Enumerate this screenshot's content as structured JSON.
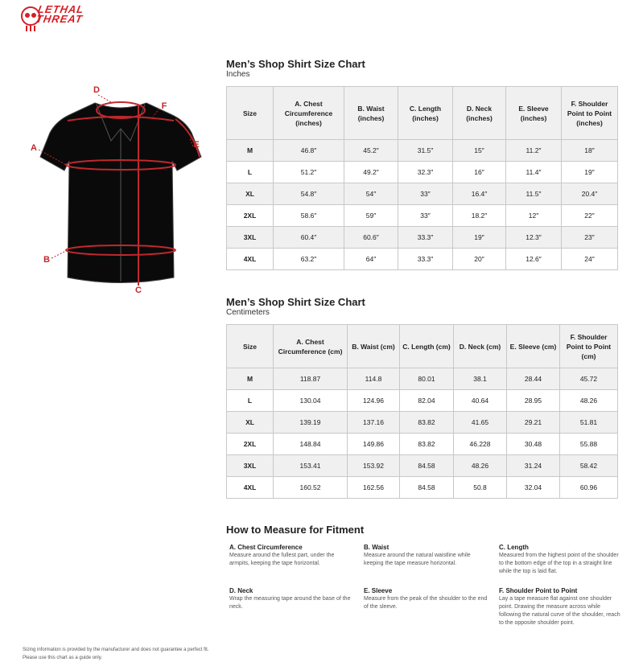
{
  "logo": {
    "line1": "LETHAL",
    "line2": "THREAT"
  },
  "diagram": {
    "labels": [
      "A",
      "B",
      "C",
      "D",
      "E",
      "F"
    ]
  },
  "tables": [
    {
      "title": "Men’s Shop Shirt Size Chart",
      "unit": "Inches",
      "headers": [
        "Size",
        "A. Chest Circumference (inches)",
        "B. Waist (inches)",
        "C. Length (inches)",
        "D. Neck (inches)",
        "E. Sleeve (inches)",
        "F. Shoulder Point to Point (inches)"
      ],
      "rows": [
        [
          "M",
          "46.8″",
          "45.2″",
          "31.5″",
          "15″",
          "11.2″",
          "18″"
        ],
        [
          "L",
          "51.2″",
          "49.2″",
          "32.3″",
          "16″",
          "11.4″",
          "19″"
        ],
        [
          "XL",
          "54.8″",
          "54″",
          "33″",
          "16.4″",
          "11.5″",
          "20.4″"
        ],
        [
          "2XL",
          "58.6″",
          "59″",
          "33″",
          "18.2″",
          "12″",
          "22″"
        ],
        [
          "3XL",
          "60.4″",
          "60.6″",
          "33.3″",
          "19″",
          "12.3″",
          "23″"
        ],
        [
          "4XL",
          "63.2″",
          "64″",
          "33.3″",
          "20″",
          "12.6″",
          "24″"
        ]
      ]
    },
    {
      "title": "Men’s Shop Shirt Size Chart",
      "unit": "Centimeters",
      "headers": [
        "Size",
        "A. Chest Circumference (cm)",
        "B. Waist (cm)",
        "C. Length (cm)",
        "D. Neck (cm)",
        "E. Sleeve (cm)",
        "F. Shoulder Point to Point (cm)"
      ],
      "rows": [
        [
          "M",
          "118.87",
          "114.8",
          "80.01",
          "38.1",
          "28.44",
          "45.72"
        ],
        [
          "L",
          "130.04",
          "124.96",
          "82.04",
          "40.64",
          "28.95",
          "48.26"
        ],
        [
          "XL",
          "139.19",
          "137.16",
          "83.82",
          "41.65",
          "29.21",
          "51.81"
        ],
        [
          "2XL",
          "148.84",
          "149.86",
          "83.82",
          "46.228",
          "30.48",
          "55.88"
        ],
        [
          "3XL",
          "153.41",
          "153.92",
          "84.58",
          "48.26",
          "31.24",
          "58.42"
        ],
        [
          "4XL",
          "160.52",
          "162.56",
          "84.58",
          "50.8",
          "32.04",
          "60.96"
        ]
      ]
    }
  ],
  "guide": {
    "title": "How to Measure for Fitment",
    "items": [
      {
        "label": "A. Chest Circumference",
        "text": "Measure around the fullest part, under the armpits, keeping the tape horizontal."
      },
      {
        "label": "B. Waist",
        "text": "Measure around the natural waistline while keeping the tape measure horizontal."
      },
      {
        "label": "C. Length",
        "text": "Measured from the highest point of the shoulder to the bottom edge of the top in a straight line while the top is laid flat."
      },
      {
        "label": "D. Neck",
        "text": "Wrap the measuring tape around the base of the neck."
      },
      {
        "label": "E. Sleeve",
        "text": "Measure from the peak of the shoulder to the end of the sleeve."
      },
      {
        "label": "F. Shoulder Point to Point",
        "text": "Lay a tape measure flat against one shoulder point. Drawing the measure across while following the natural curve of the shoulder, reach to the opposite shoulder point."
      }
    ]
  },
  "footer": [
    "Sizing information is provided by the manufacturer and does not guarantee a perfect fit.",
    "Please use this chart as a guide only."
  ]
}
